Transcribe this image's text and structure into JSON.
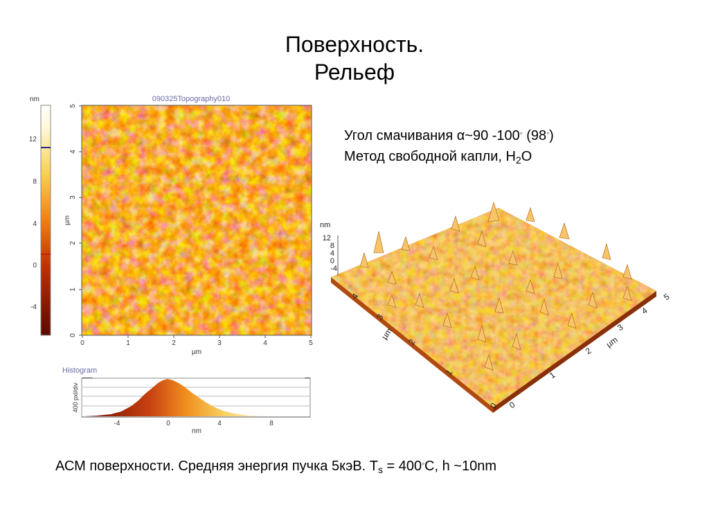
{
  "slide": {
    "title_line1": "Поверхность.",
    "title_line2": "Рельеф"
  },
  "info": {
    "contact_angle_text": "Угол смачивания α~90 -100",
    "contact_angle_deg1": "◦",
    "contact_angle_value": " (98",
    "contact_angle_deg2": "◦",
    "contact_angle_close": ")",
    "method_text": "Метод свободной капли, H",
    "method_sub": "2",
    "method_end": "O"
  },
  "caption": {
    "text_before": "АСМ поверхности. Средняя энергия пучка 5кэВ. T",
    "sub": "s",
    "text_mid": " = 400",
    "deg": "◦",
    "text_after": "C, h ~10nm"
  },
  "topography": {
    "title": "090325Topography010",
    "scale_unit": "nm",
    "scale_ticks": [
      "12",
      "8",
      "4",
      "0",
      "-4"
    ],
    "x_ticks": [
      "0",
      "1",
      "2",
      "3",
      "4",
      "5"
    ],
    "y_ticks": [
      "0",
      "1",
      "2",
      "3",
      "4",
      "5"
    ],
    "x_label": "µm",
    "y_label": "µm",
    "colors": {
      "dark": "#5a0a00",
      "mid": "#e06010",
      "light": "#fff4cc"
    }
  },
  "histogram": {
    "title": "Histogram",
    "x_ticks": [
      "-4",
      "0",
      "4",
      "8"
    ],
    "x_label": "nm",
    "y_label": "400 pxl/div"
  },
  "surface3d": {
    "z_unit": "nm",
    "z_ticks": [
      "12",
      "8",
      "4",
      "0",
      "-4"
    ],
    "left_axis_ticks": [
      "0",
      "1",
      "2",
      "3",
      "4"
    ],
    "left_axis_label": "µm",
    "right_axis_ticks": [
      "0",
      "1",
      "2",
      "3",
      "4",
      "5"
    ],
    "right_axis_label": "µm"
  }
}
